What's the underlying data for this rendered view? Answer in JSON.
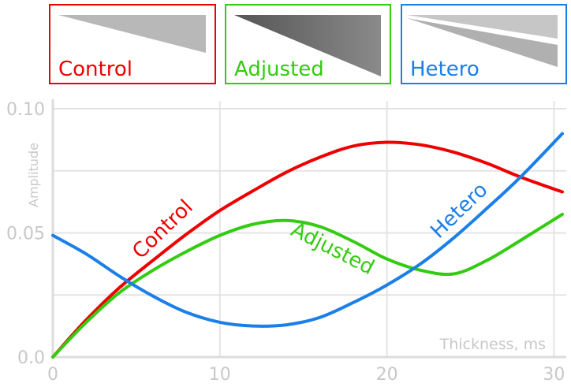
{
  "legend": [
    {
      "label": "Control",
      "color": "#ee0000",
      "icon": "control-wedge-icon"
    },
    {
      "label": "Adjusted",
      "color": "#33cc11",
      "icon": "adjusted-wedge-icon"
    },
    {
      "label": "Hetero",
      "color": "#1a7fe8",
      "icon": "hetero-wedges-icon"
    }
  ],
  "chart_data": {
    "type": "line",
    "xlabel": "Thickness, ms",
    "ylabel": "Amplitude",
    "xlim": [
      0,
      30.5
    ],
    "ylim": [
      0,
      0.1
    ],
    "xticks": [
      0,
      10,
      20,
      30
    ],
    "xtick_labels": [
      "0",
      "10",
      "20",
      "30"
    ],
    "yticks": [
      0,
      0.05,
      0.1
    ],
    "ytick_labels": [
      "0.0",
      "0.05",
      "0.10"
    ],
    "grid": true,
    "series": [
      {
        "name": "Control",
        "color": "#ee0000",
        "x": [
          0,
          2,
          4,
          6,
          8,
          10,
          12,
          14,
          16,
          18,
          20,
          22,
          24,
          26,
          28,
          30.5
        ],
        "y": [
          0,
          0.015,
          0.028,
          0.039,
          0.0495,
          0.059,
          0.067,
          0.0745,
          0.0805,
          0.085,
          0.0865,
          0.0855,
          0.0825,
          0.078,
          0.0725,
          0.0665
        ],
        "label_text": "Control"
      },
      {
        "name": "Adjusted",
        "color": "#33cc11",
        "x": [
          0,
          2,
          4,
          6,
          8,
          10,
          12,
          14,
          16,
          18,
          20,
          22,
          24,
          26,
          28,
          30.5
        ],
        "y": [
          0,
          0.014,
          0.026,
          0.035,
          0.0425,
          0.049,
          0.0535,
          0.055,
          0.0525,
          0.0465,
          0.0395,
          0.035,
          0.0335,
          0.039,
          0.047,
          0.0575
        ],
        "label_text": "Adjusted"
      },
      {
        "name": "Hetero",
        "color": "#1a7fe8",
        "x": [
          0,
          2,
          4,
          6,
          8,
          10,
          12,
          14,
          16,
          18,
          20,
          22,
          24,
          26,
          28,
          30.5
        ],
        "y": [
          0.049,
          0.0415,
          0.0325,
          0.0245,
          0.018,
          0.014,
          0.0125,
          0.013,
          0.016,
          0.022,
          0.029,
          0.0375,
          0.048,
          0.06,
          0.0725,
          0.09
        ],
        "label_text": "Hetero"
      }
    ]
  }
}
